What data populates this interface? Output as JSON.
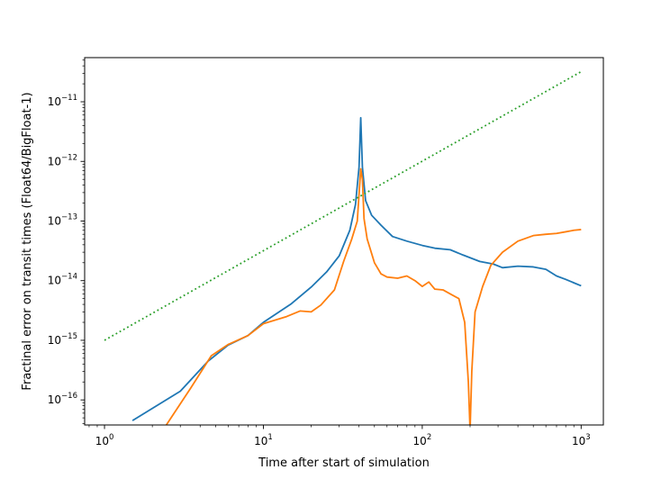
{
  "chart_data": {
    "type": "line",
    "title": "",
    "xlabel": "Time after start of simulation",
    "ylabel": "Fractinal error on transit times (Float64/BigFloat-1)",
    "xscale": "log",
    "yscale": "log",
    "xlim": [
      0.75,
      1380
    ],
    "ylim": [
      3.8e-17,
      5.5e-11
    ],
    "grid": false,
    "legend": "none",
    "x_ticks": [
      {
        "value": 1,
        "base": "10",
        "exp": "0"
      },
      {
        "value": 10,
        "base": "10",
        "exp": "1"
      },
      {
        "value": 100,
        "base": "10",
        "exp": "2"
      },
      {
        "value": 1000,
        "base": "10",
        "exp": "3"
      }
    ],
    "y_ticks": [
      {
        "value": 1e-16,
        "base": "10",
        "exp": "−16"
      },
      {
        "value": 1e-15,
        "base": "10",
        "exp": "−15"
      },
      {
        "value": 1e-14,
        "base": "10",
        "exp": "−14"
      },
      {
        "value": 1e-13,
        "base": "10",
        "exp": "−13"
      },
      {
        "value": 1e-12,
        "base": "10",
        "exp": "−12"
      },
      {
        "value": 1e-11,
        "base": "10",
        "exp": "−11"
      }
    ],
    "series": [
      {
        "color": "#1f77b4",
        "dash": "solid",
        "points": [
          [
            1.5,
            4.5e-17
          ],
          [
            3,
            1.4e-16
          ],
          [
            4.5,
            4.5e-16
          ],
          [
            6,
            8.3e-16
          ],
          [
            8,
            1.2e-15
          ],
          [
            10,
            2e-15
          ],
          [
            15,
            4.1e-15
          ],
          [
            20,
            7.8e-15
          ],
          [
            25,
            1.4e-14
          ],
          [
            30,
            2.6e-14
          ],
          [
            35,
            7e-14
          ],
          [
            38,
            1.9e-13
          ],
          [
            40,
            8e-13
          ],
          [
            41,
            5.4e-12
          ],
          [
            42,
            8e-13
          ],
          [
            44,
            2.2e-13
          ],
          [
            48,
            1.25e-13
          ],
          [
            55,
            8.5e-14
          ],
          [
            65,
            5.5e-14
          ],
          [
            80,
            4.6e-14
          ],
          [
            100,
            3.9e-14
          ],
          [
            120,
            3.5e-14
          ],
          [
            150,
            3.3e-14
          ],
          [
            180,
            2.7e-14
          ],
          [
            230,
            2.1e-14
          ],
          [
            280,
            1.9e-14
          ],
          [
            320,
            1.65e-14
          ],
          [
            400,
            1.75e-14
          ],
          [
            500,
            1.7e-14
          ],
          [
            600,
            1.55e-14
          ],
          [
            700,
            1.2e-14
          ],
          [
            800,
            1.05e-14
          ],
          [
            900,
            9.2e-15
          ],
          [
            1000,
            8.2e-15
          ]
        ]
      },
      {
        "color": "#ff7f0e",
        "dash": "solid",
        "points": [
          [
            2.4,
            3.5e-17
          ],
          [
            3.5,
            1.6e-16
          ],
          [
            4.7,
            5.5e-16
          ],
          [
            6,
            8.5e-16
          ],
          [
            8,
            1.2e-15
          ],
          [
            10,
            1.9e-15
          ],
          [
            14,
            2.5e-15
          ],
          [
            17,
            3.1e-15
          ],
          [
            20,
            3e-15
          ],
          [
            23,
            3.9e-15
          ],
          [
            28,
            7e-15
          ],
          [
            32,
            2.1e-14
          ],
          [
            36,
            5e-14
          ],
          [
            39,
            1e-13
          ],
          [
            41,
            7.5e-13
          ],
          [
            42,
            5e-13
          ],
          [
            43,
            1.1e-13
          ],
          [
            45,
            5e-14
          ],
          [
            50,
            2e-14
          ],
          [
            55,
            1.3e-14
          ],
          [
            60,
            1.15e-14
          ],
          [
            70,
            1.1e-14
          ],
          [
            80,
            1.2e-14
          ],
          [
            90,
            1e-14
          ],
          [
            100,
            8e-15
          ],
          [
            110,
            9.5e-15
          ],
          [
            120,
            7.2e-15
          ],
          [
            135,
            7e-15
          ],
          [
            150,
            6e-15
          ],
          [
            170,
            5e-15
          ],
          [
            185,
            2e-15
          ],
          [
            195,
            2e-16
          ],
          [
            200,
            3.1e-17
          ],
          [
            205,
            3e-16
          ],
          [
            215,
            3e-15
          ],
          [
            240,
            8e-15
          ],
          [
            270,
            1.8e-14
          ],
          [
            320,
            3e-14
          ],
          [
            400,
            4.6e-14
          ],
          [
            500,
            5.7e-14
          ],
          [
            600,
            6e-14
          ],
          [
            700,
            6.2e-14
          ],
          [
            800,
            6.6e-14
          ],
          [
            900,
            7e-14
          ],
          [
            1000,
            7.2e-14
          ]
        ]
      },
      {
        "color": "#2ca02c",
        "dash": "dotted",
        "points": [
          [
            1,
            1e-15
          ],
          [
            1000,
            3.2e-11
          ]
        ]
      }
    ]
  }
}
